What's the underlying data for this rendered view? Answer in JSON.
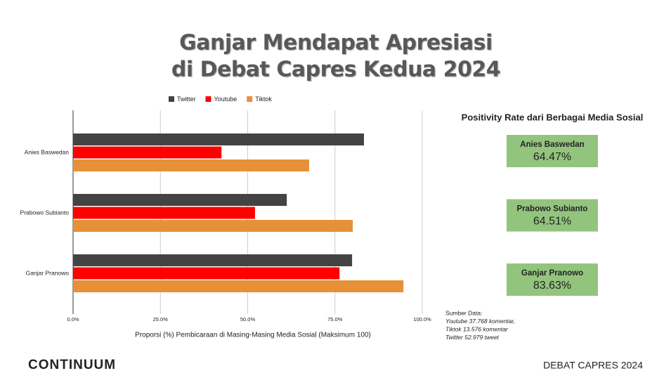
{
  "header": {
    "title_lines": [
      "Ganjar Mendapat Apresiasi",
      "di Debat Capres Kedua 2024"
    ]
  },
  "chart_data": {
    "type": "bar",
    "orientation": "horizontal",
    "categories": [
      "Anies Baswedan",
      "Prabowo Subianto",
      "Ganjar Pranowo"
    ],
    "series": [
      {
        "name": "Twitter",
        "color": "#434343",
        "values": [
          83.3,
          61.2,
          79.9
        ]
      },
      {
        "name": "Youtube",
        "color": "#ff0000",
        "values": [
          42.5,
          52.1,
          76.3
        ]
      },
      {
        "name": "Tiktok",
        "color": "#e69138",
        "values": [
          67.6,
          80.1,
          94.6
        ]
      }
    ],
    "x_label": "Proporsi (%) Pembicaraan di Masing-Masing Media Sosial (Maksimum 100)",
    "xlim": [
      0,
      100
    ],
    "xticks": [
      {
        "value": 0,
        "label": "0.0%"
      },
      {
        "value": 25,
        "label": "25.0%"
      },
      {
        "value": 50,
        "label": "50.0%"
      },
      {
        "value": 75,
        "label": "75.0%"
      },
      {
        "value": 100,
        "label": "100.0%"
      }
    ],
    "grid": true,
    "legend": "top"
  },
  "positivity": {
    "title": "Positivity Rate dari Berbagai Media Sosial",
    "items": [
      {
        "name": "Anies Baswedan",
        "rate": "64.47%"
      },
      {
        "name": "Prabowo Subianto",
        "rate": "64.51%"
      },
      {
        "name": "Ganjar Pranowo",
        "rate": "83.63%"
      }
    ]
  },
  "source": [
    "Sumber Data:",
    "Youtube 37.768 komentar,",
    "Tiktok 13.576 komentar",
    "Twitter 52.979 tweet"
  ],
  "footer": {
    "logo": "CONTINUUM",
    "tag": "DEBAT CAPRES 2024"
  }
}
